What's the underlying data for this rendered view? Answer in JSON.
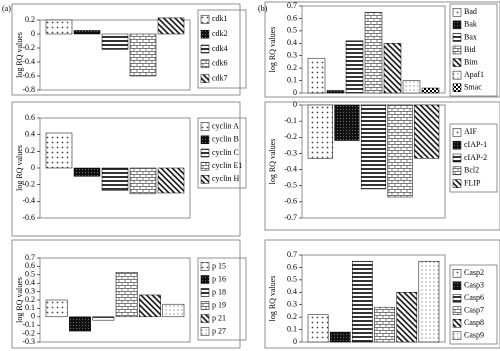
{
  "panel_labels": [
    "(a)",
    "(b)"
  ],
  "chart_data": [
    {
      "type": "bar",
      "y_label": "log RQ values",
      "categories": [
        "cdk1",
        "cdk2",
        "cdk4",
        "cdk6",
        "cdk7"
      ],
      "values": [
        0.2,
        0.05,
        -0.22,
        -0.6,
        0.23
      ],
      "ylim": [
        -0.8,
        0.2
      ],
      "yticks": [
        -0.8,
        -0.6,
        -0.4,
        -0.2,
        0,
        0.2
      ]
    },
    {
      "type": "bar",
      "y_label": "log RQ values",
      "categories": [
        "cyclin A",
        "cyclin B",
        "cyclin C",
        "cyclin E1",
        "cyclin H"
      ],
      "values": [
        0.42,
        -0.1,
        -0.27,
        -0.31,
        -0.3
      ],
      "ylim": [
        -0.6,
        0.6
      ],
      "yticks": [
        -0.6,
        -0.4,
        -0.2,
        0,
        0.2,
        0.4,
        0.6
      ]
    },
    {
      "type": "bar",
      "y_label": "log RQ values",
      "categories": [
        "p 15",
        "p 16",
        "p 18",
        "p 19",
        "p 21",
        "p 27"
      ],
      "values": [
        0.2,
        -0.17,
        -0.04,
        0.53,
        0.26,
        0.15
      ],
      "ylim": [
        -0.3,
        0.7
      ],
      "yticks": [
        -0.3,
        -0.2,
        -0.1,
        0,
        0.1,
        0.2,
        0.3,
        0.4,
        0.5,
        0.6,
        0.7
      ]
    },
    {
      "type": "bar",
      "y_label": "log RQ values",
      "categories": [
        "Bad",
        "Bak",
        "Bax",
        "Bid",
        "Bim",
        "Apaf1",
        "Smac"
      ],
      "values": [
        0.28,
        0.02,
        0.42,
        0.65,
        0.4,
        0.1,
        0.04
      ],
      "ylim": [
        0,
        0.7
      ],
      "yticks": [
        0,
        0.1,
        0.2,
        0.3,
        0.4,
        0.5,
        0.6,
        0.7
      ]
    },
    {
      "type": "bar",
      "y_label": "log RQ values",
      "categories": [
        "AIF",
        "cIAP-1",
        "cIAP-2",
        "Bcl2",
        "FLIP"
      ],
      "values": [
        -0.33,
        -0.22,
        -0.52,
        -0.57,
        -0.33
      ],
      "ylim": [
        -0.7,
        0
      ],
      "yticks": [
        -0.7,
        -0.6,
        -0.5,
        -0.4,
        -0.3,
        -0.2,
        -0.1,
        0
      ]
    },
    {
      "type": "bar",
      "y_label": "log RQ values",
      "categories": [
        "Casp2",
        "Casp3",
        "Casp6",
        "Casp7",
        "Casp8",
        "Casp9"
      ],
      "values": [
        0.22,
        0.08,
        0.65,
        0.28,
        0.4,
        0.65
      ],
      "ylim": [
        0,
        0.7
      ],
      "yticks": [
        0,
        0.1,
        0.2,
        0.3,
        0.4,
        0.5,
        0.6,
        0.7
      ]
    }
  ]
}
